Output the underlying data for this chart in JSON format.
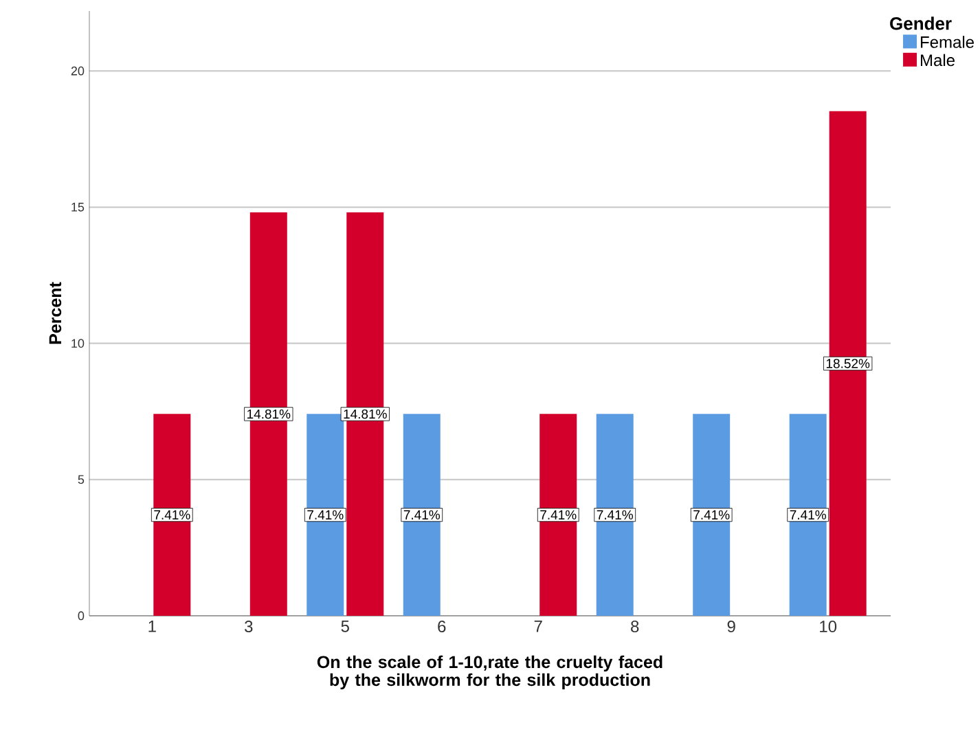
{
  "chart_data": {
    "type": "bar",
    "xlabel": "On the scale of 1-10,rate the cruelty faced by the silkworm for the silk production",
    "ylabel": "Percent",
    "legend_title": "Gender",
    "categories": [
      "1",
      "3",
      "5",
      "6",
      "7",
      "8",
      "9",
      "10"
    ],
    "series": [
      {
        "name": "Female",
        "color": "#5b9be2",
        "values": [
          null,
          null,
          7.41,
          7.41,
          null,
          7.41,
          7.41,
          7.41
        ],
        "value_labels": [
          null,
          null,
          "7.41%",
          "7.41%",
          null,
          "7.41%",
          "7.41%",
          "7.41%"
        ]
      },
      {
        "name": "Male",
        "color": "#d3002b",
        "values": [
          7.41,
          14.81,
          14.81,
          null,
          7.41,
          null,
          null,
          18.52
        ],
        "value_labels": [
          "7.41%",
          "14.81%",
          "14.81%",
          null,
          "7.41%",
          null,
          null,
          "18.52%"
        ]
      }
    ],
    "ylim": [
      0,
      22.2
    ],
    "yticks": [
      0,
      5,
      10,
      15,
      20
    ],
    "grid": "y",
    "legend": "top right"
  }
}
